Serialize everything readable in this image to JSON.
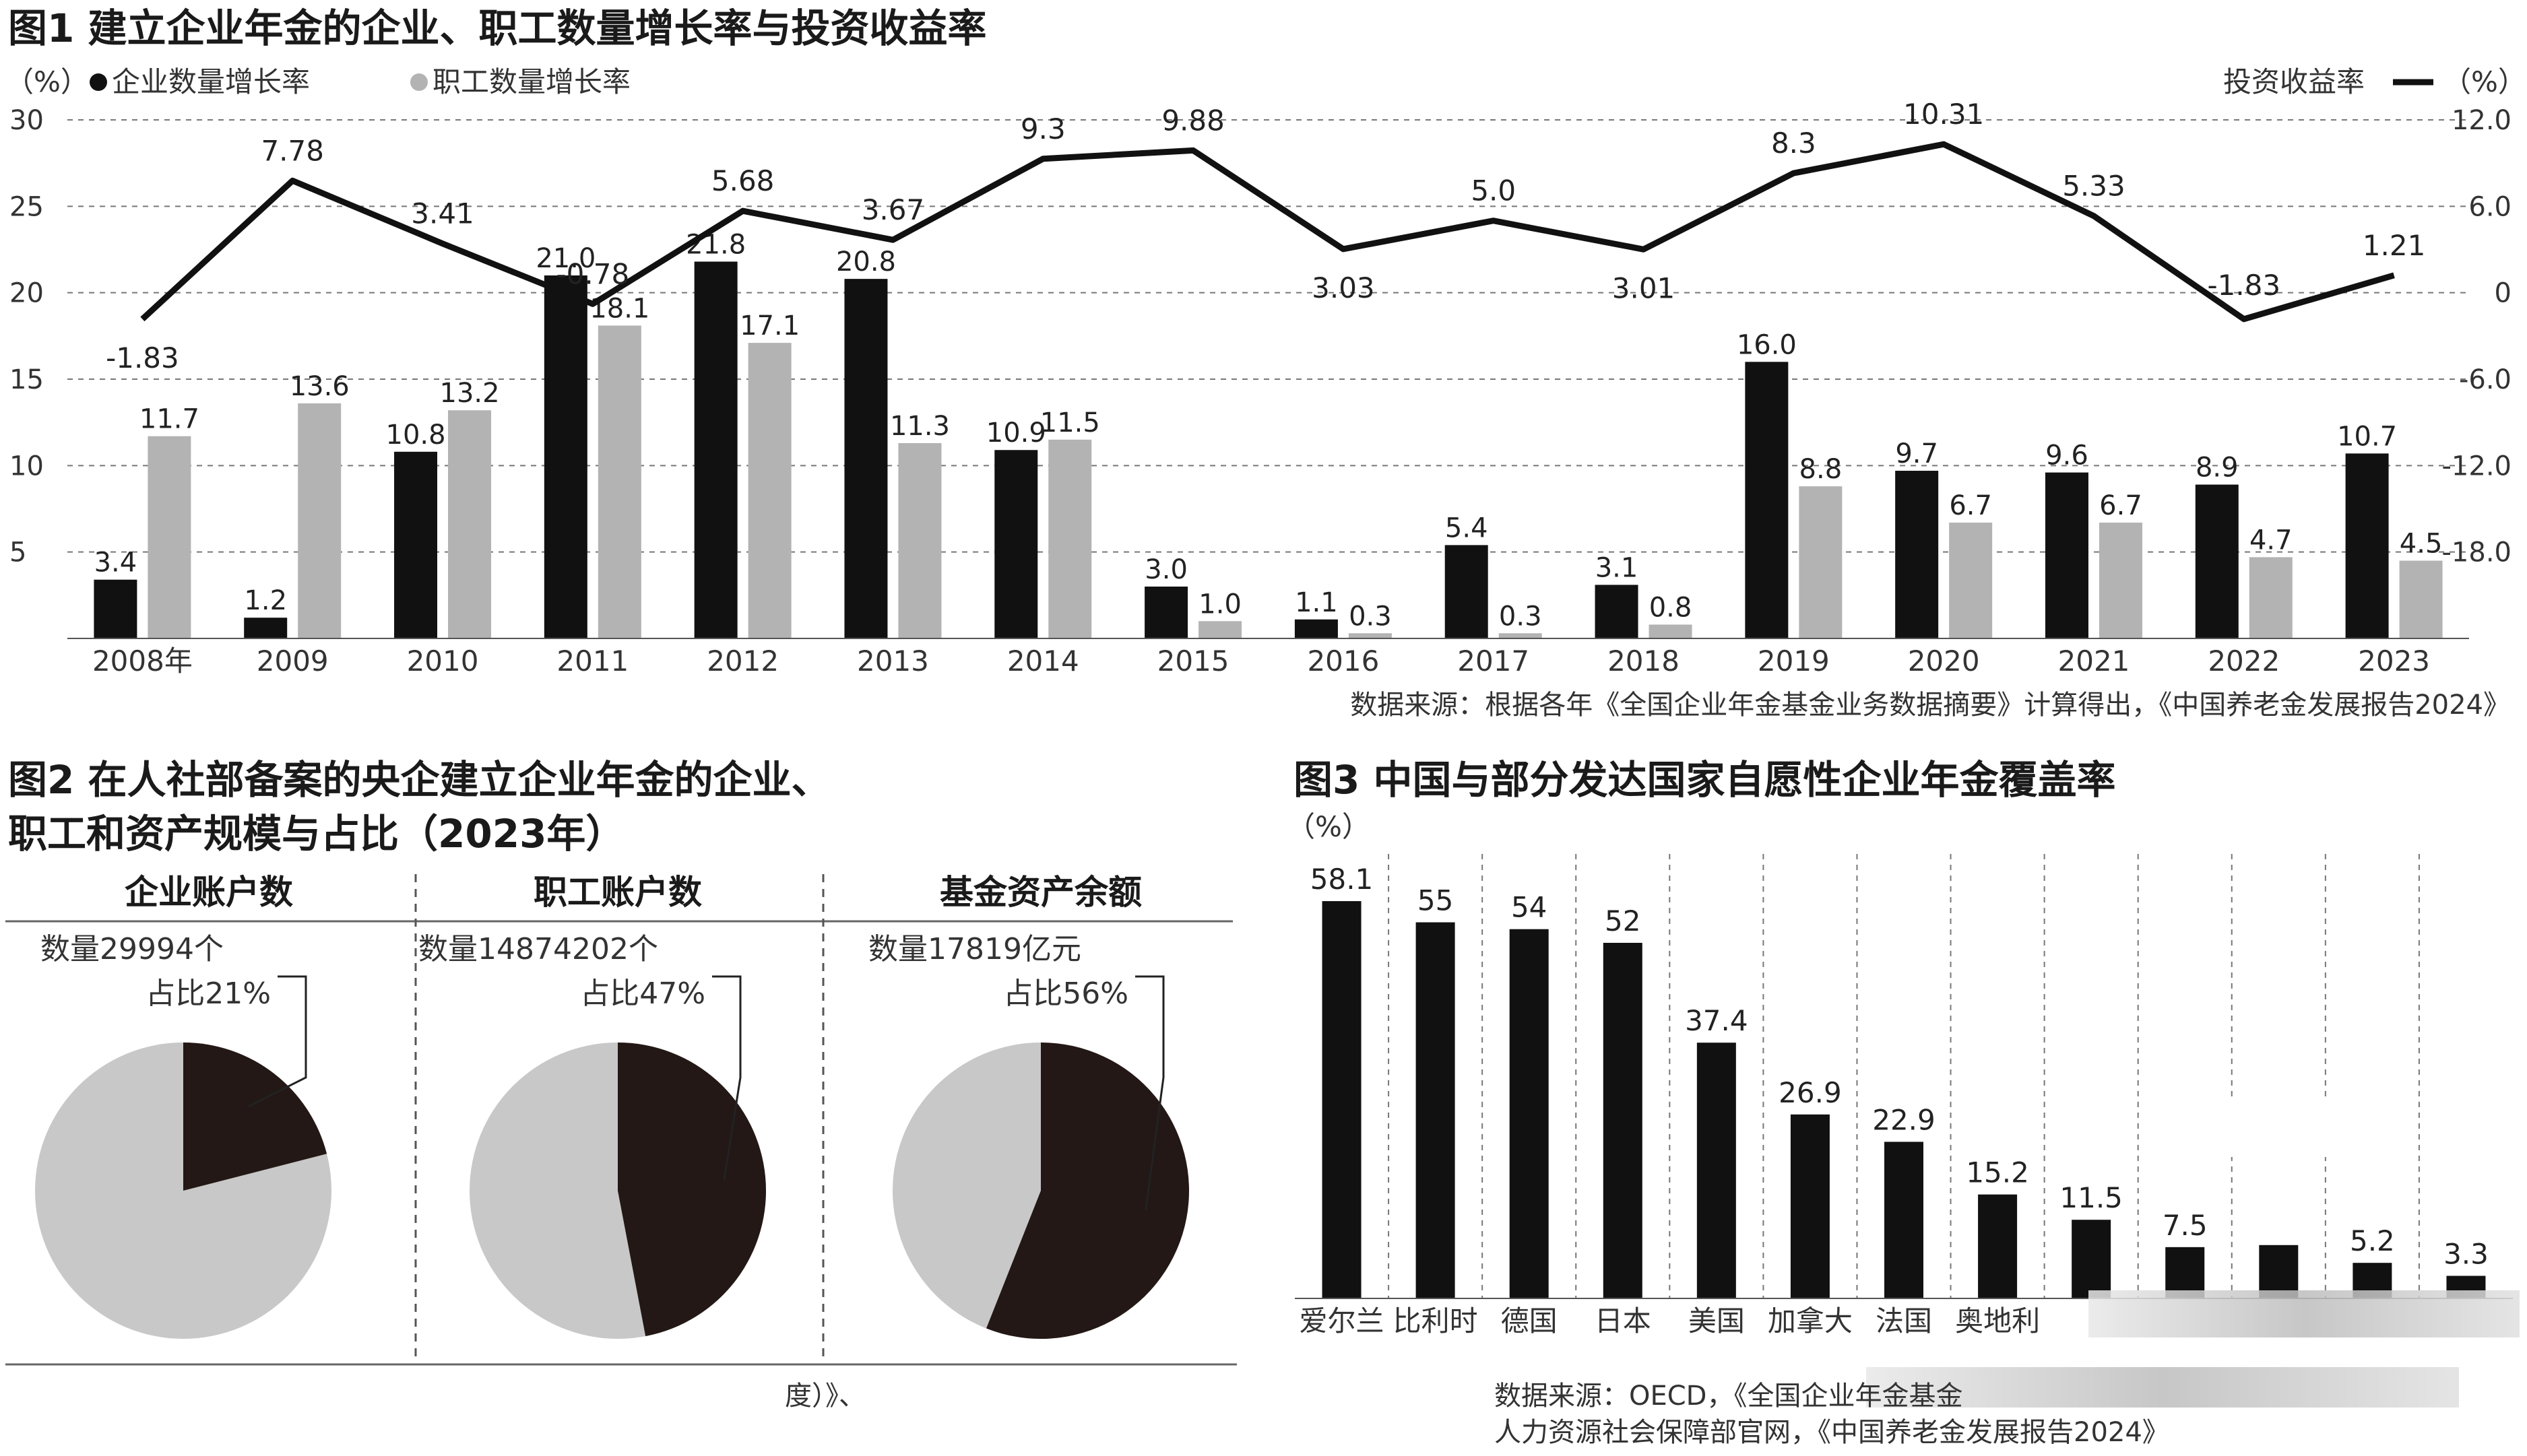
{
  "fig1": {
    "title": "图1 建立企业年金的企业、职工数量增长率与投资收益率",
    "left_unit": "（%）",
    "right_unit": "（%）",
    "legend": {
      "enterprise": "企业数量增长率",
      "worker": "职工数量增长率",
      "return": "投资收益率"
    },
    "source": "数据来源：根据各年《全国企业年金基金业务数据摘要》计算得出，《中国养老金发展报告2024》"
  },
  "fig2": {
    "title_line1": "图2 在人社部备案的央企建立企业年金的企业、",
    "title_line2": "职工和资产规模与占比（2023年）",
    "footer_fragment": "度）》、",
    "pies": [
      {
        "header": "企业账户数",
        "count_label": "数量29994个",
        "share_label": "占比21%",
        "share": 0.21
      },
      {
        "header": "职工账户数",
        "count_label": "数量14874202个",
        "share_label": "占比47%",
        "share": 0.47
      },
      {
        "header": "基金资产余额",
        "count_label": "数量17819亿元",
        "share_label": "占比56%",
        "share": 0.56
      }
    ]
  },
  "fig3": {
    "title": "图3 中国与部分发达国家自愿性企业年金覆盖率",
    "unit": "（%）",
    "source_line1": "数据来源：OECD，《全国企业年金基金",
    "source_line2": "人力资源社会保障部官网，《中国养老金发展报告2024》",
    "obscured_value": "7.8"
  },
  "chart_data": [
    {
      "type": "bar",
      "categories": [
        "2008年",
        "2009",
        "2010",
        "2011",
        "2012",
        "2013",
        "2014",
        "2015",
        "2016",
        "2017",
        "2018",
        "2019",
        "2020",
        "2021",
        "2022",
        "2023"
      ],
      "series": [
        {
          "name": "企业数量增长率",
          "axis": "left",
          "color": "#111111",
          "values": [
            3.4,
            1.2,
            10.8,
            21.0,
            21.8,
            20.8,
            10.9,
            3.0,
            1.1,
            5.4,
            3.1,
            16.0,
            9.7,
            9.6,
            8.9,
            10.7
          ],
          "labels": [
            "3.4",
            "1.2",
            "10.8",
            "21.0",
            "21.8",
            "20.8",
            "10.9",
            "3.0",
            "1.1",
            "5.4",
            "3.1",
            "16.0",
            "9.7",
            "9.6",
            "8.9",
            "10.7"
          ]
        },
        {
          "name": "职工数量增长率",
          "axis": "left",
          "color": "#b3b3b3",
          "values": [
            11.7,
            13.6,
            13.2,
            18.1,
            17.1,
            11.3,
            11.5,
            1.0,
            0.3,
            0.3,
            0.8,
            8.8,
            6.7,
            6.7,
            4.7,
            4.5
          ],
          "labels": [
            "11.7",
            "13.6",
            "13.2",
            "18.1",
            "17.1",
            "11.3",
            "11.5",
            "1.0",
            "0.3",
            "0.3",
            "0.8",
            "8.8",
            "6.7",
            "6.7",
            "4.7",
            "4.5"
          ]
        },
        {
          "name": "投资收益率",
          "type": "line",
          "axis": "right",
          "color": "#111111",
          "values": [
            -1.83,
            7.78,
            3.41,
            -0.78,
            5.68,
            3.67,
            9.3,
            9.88,
            3.03,
            5.0,
            3.01,
            8.3,
            10.31,
            5.33,
            -1.83,
            1.21
          ],
          "labels": [
            "-1.83",
            "7.78",
            "3.41",
            "-0.78",
            "5.68",
            "3.67",
            "9.3",
            "9.88",
            "3.03",
            "5.0",
            "3.01",
            "8.3",
            "10.31",
            "5.33",
            "-1.83",
            "1.21"
          ]
        }
      ],
      "left_axis": {
        "ticks": [
          "5",
          "10",
          "15",
          "20",
          "25",
          "30"
        ],
        "ylim": [
          0,
          30
        ]
      },
      "right_axis": {
        "ticks": [
          "-18.0",
          "-12.0",
          "-6.0",
          "0",
          "6.0",
          "12.0"
        ],
        "ylim": [
          -24,
          12
        ]
      },
      "grid": "dashed horizontal",
      "legend_position": "top"
    },
    {
      "type": "bar",
      "categories": [
        "爱尔兰",
        "比利时",
        "德国",
        "日本",
        "美国",
        "加拿大",
        "法国",
        "奥地利",
        "",
        "",
        "",
        "",
        ""
      ],
      "values": [
        58.1,
        55,
        54,
        52,
        37.4,
        26.9,
        22.9,
        15.2,
        11.5,
        7.5,
        7.8,
        5.2,
        3.3
      ],
      "labels": [
        "58.1",
        "55",
        "54",
        "52",
        "37.4",
        "26.9",
        "22.9",
        "15.2",
        "11.5",
        "7.5",
        "",
        "5.2",
        "3.3"
      ],
      "color": "#111111",
      "ylim": [
        0,
        65
      ]
    }
  ]
}
